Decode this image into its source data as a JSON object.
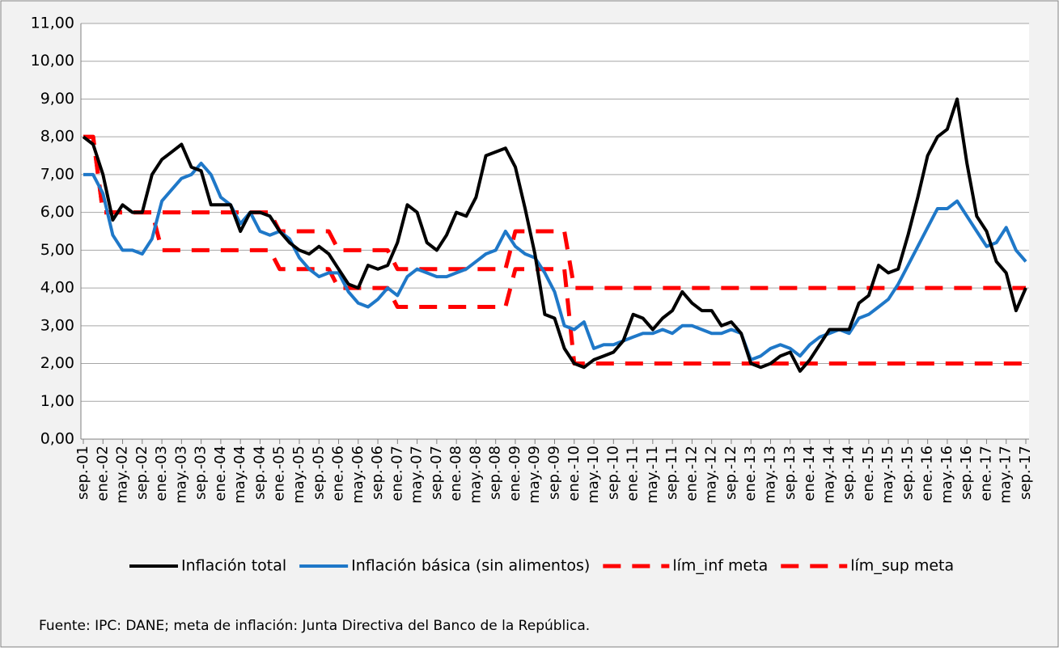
{
  "chart_data": {
    "type": "line",
    "categories": [
      "sep.-01",
      null,
      "ene.-02",
      null,
      "may.-02",
      null,
      "sep.-02",
      null,
      "ene.-03",
      null,
      "may.-03",
      null,
      "sep.-03",
      null,
      "ene.-04",
      null,
      "may.-04",
      null,
      "sep.-04",
      null,
      "ene.-05",
      null,
      "may.-05",
      null,
      "sep.-05",
      null,
      "ene.-06",
      null,
      "may.-06",
      null,
      "sep.-06",
      null,
      "ene.-07",
      null,
      "may.-07",
      null,
      "sep.-07",
      null,
      "ene.-08",
      null,
      "may.-08",
      null,
      "sep.-08",
      null,
      "ene.-09",
      null,
      "may.-09",
      null,
      "sep.-09",
      null,
      "ene.-10",
      null,
      "may.-10",
      null,
      "sep.-10",
      null,
      "ene.-11",
      null,
      "may.-11",
      null,
      "sep.-11",
      null,
      "ene.-12",
      null,
      "may.-12",
      null,
      "sep.-12",
      null,
      "ene.-13",
      null,
      "may.-13",
      null,
      "sep.-13",
      null,
      "ene.-14",
      null,
      "may.-14",
      null,
      "sep.-14",
      null,
      "ene.-15",
      null,
      "may.-15",
      null,
      "sep.-15",
      null,
      "ene.-16",
      null,
      "may.-16",
      null,
      "sep.-16",
      null,
      "ene.-17",
      null,
      "may.-17",
      null,
      "sep.-17"
    ],
    "series": [
      {
        "name": "Inflación total",
        "color": "#000000",
        "dashed": false,
        "values": [
          8.0,
          7.8,
          7.0,
          5.8,
          6.2,
          6.0,
          6.0,
          7.0,
          7.4,
          7.6,
          7.8,
          7.2,
          7.1,
          6.2,
          6.2,
          6.2,
          5.5,
          6.0,
          6.0,
          5.9,
          5.5,
          5.2,
          5.0,
          4.9,
          5.1,
          4.9,
          4.5,
          4.1,
          4.0,
          4.6,
          4.5,
          4.6,
          5.2,
          6.2,
          6.0,
          5.2,
          5.0,
          5.4,
          6.0,
          5.9,
          6.4,
          7.5,
          7.6,
          7.7,
          7.2,
          6.1,
          4.9,
          3.3,
          3.2,
          2.4,
          2.0,
          1.9,
          2.1,
          2.2,
          2.3,
          2.6,
          3.3,
          3.2,
          2.9,
          3.2,
          3.4,
          3.9,
          3.6,
          3.4,
          3.4,
          3.0,
          3.1,
          2.8,
          2.0,
          1.9,
          2.0,
          2.2,
          2.3,
          1.8,
          2.1,
          2.5,
          2.9,
          2.9,
          2.9,
          3.6,
          3.8,
          4.6,
          4.4,
          4.5,
          5.4,
          6.4,
          7.5,
          8.0,
          8.2,
          9.0,
          7.3,
          5.9,
          5.5,
          4.7,
          4.4,
          3.4,
          4.0
        ]
      },
      {
        "name": "Inflación básica (sin alimentos)",
        "color": "#1f78c8",
        "dashed": false,
        "values": [
          7.0,
          7.0,
          6.5,
          5.4,
          5.0,
          5.0,
          4.9,
          5.3,
          6.3,
          6.6,
          6.9,
          7.0,
          7.3,
          7.0,
          6.4,
          6.2,
          5.7,
          6.0,
          5.5,
          5.4,
          5.5,
          5.3,
          4.8,
          4.5,
          4.3,
          4.4,
          4.4,
          3.9,
          3.6,
          3.5,
          3.7,
          4.0,
          3.8,
          4.3,
          4.5,
          4.4,
          4.3,
          4.3,
          4.4,
          4.5,
          4.7,
          4.9,
          5.0,
          5.5,
          5.1,
          4.9,
          4.8,
          4.4,
          3.9,
          3.0,
          2.9,
          3.1,
          2.4,
          2.5,
          2.5,
          2.6,
          2.7,
          2.8,
          2.8,
          2.9,
          2.8,
          3.0,
          3.0,
          2.9,
          2.8,
          2.8,
          2.9,
          2.8,
          2.1,
          2.2,
          2.4,
          2.5,
          2.4,
          2.2,
          2.5,
          2.7,
          2.8,
          2.9,
          2.8,
          3.2,
          3.3,
          3.5,
          3.7,
          4.1,
          4.6,
          5.1,
          5.6,
          6.1,
          6.1,
          6.3,
          5.9,
          5.5,
          5.1,
          5.2,
          5.6,
          5.0,
          4.7
        ]
      },
      {
        "name": "lím_inf meta",
        "color": "#ff0000",
        "dashed": true,
        "values": [
          8,
          8,
          6,
          6,
          6,
          6,
          6,
          6,
          5,
          5,
          5,
          5,
          5,
          5,
          5,
          5,
          5,
          5,
          5,
          5,
          4.5,
          4.5,
          4.5,
          4.5,
          4.5,
          4.5,
          4,
          4,
          4,
          4,
          4,
          4,
          3.5,
          3.5,
          3.5,
          3.5,
          3.5,
          3.5,
          3.5,
          3.5,
          3.5,
          3.5,
          3.5,
          3.5,
          4.5,
          4.5,
          4.5,
          4.5,
          4.5,
          4.5,
          2,
          2,
          2,
          2,
          2,
          2,
          2,
          2,
          2,
          2,
          2,
          2,
          2,
          2,
          2,
          2,
          2,
          2,
          2,
          2,
          2,
          2,
          2,
          2,
          2,
          2,
          2,
          2,
          2,
          2,
          2,
          2,
          2,
          2,
          2,
          2,
          2,
          2,
          2,
          2,
          2,
          2,
          2,
          2,
          2,
          2,
          2
        ]
      },
      {
        "name": "lím_sup meta",
        "color": "#ff0000",
        "dashed": true,
        "values": [
          8,
          8,
          6,
          6,
          6,
          6,
          6,
          6,
          6,
          6,
          6,
          6,
          6,
          6,
          6,
          6,
          6,
          6,
          6,
          6,
          5.5,
          5.5,
          5.5,
          5.5,
          5.5,
          5.5,
          5,
          5,
          5,
          5,
          5,
          5,
          4.5,
          4.5,
          4.5,
          4.5,
          4.5,
          4.5,
          4.5,
          4.5,
          4.5,
          4.5,
          4.5,
          4.5,
          5.5,
          5.5,
          5.5,
          5.5,
          5.5,
          5.5,
          4,
          4,
          4,
          4,
          4,
          4,
          4,
          4,
          4,
          4,
          4,
          4,
          4,
          4,
          4,
          4,
          4,
          4,
          4,
          4,
          4,
          4,
          4,
          4,
          4,
          4,
          4,
          4,
          4,
          4,
          4,
          4,
          4,
          4,
          4,
          4,
          4,
          4,
          4,
          4,
          4,
          4,
          4,
          4,
          4,
          4,
          4
        ]
      }
    ],
    "ylim": [
      0,
      11
    ],
    "yticks": [
      {
        "value": 0,
        "label": "0,00"
      },
      {
        "value": 1,
        "label": "1,00"
      },
      {
        "value": 2,
        "label": "2,00"
      },
      {
        "value": 3,
        "label": "3,00"
      },
      {
        "value": 4,
        "label": "4,00"
      },
      {
        "value": 5,
        "label": "5,00"
      },
      {
        "value": 6,
        "label": "6,00"
      },
      {
        "value": 7,
        "label": "7,00"
      },
      {
        "value": 8,
        "label": "8,00"
      },
      {
        "value": 9,
        "label": "9,00"
      },
      {
        "value": 10,
        "label": "10,00"
      },
      {
        "value": 11,
        "label": "11,00"
      }
    ],
    "grid": true,
    "legend": "bottom",
    "source": "Fuente: IPC: DANE;  meta de inflación: Junta Directiva del Banco de la República."
  }
}
